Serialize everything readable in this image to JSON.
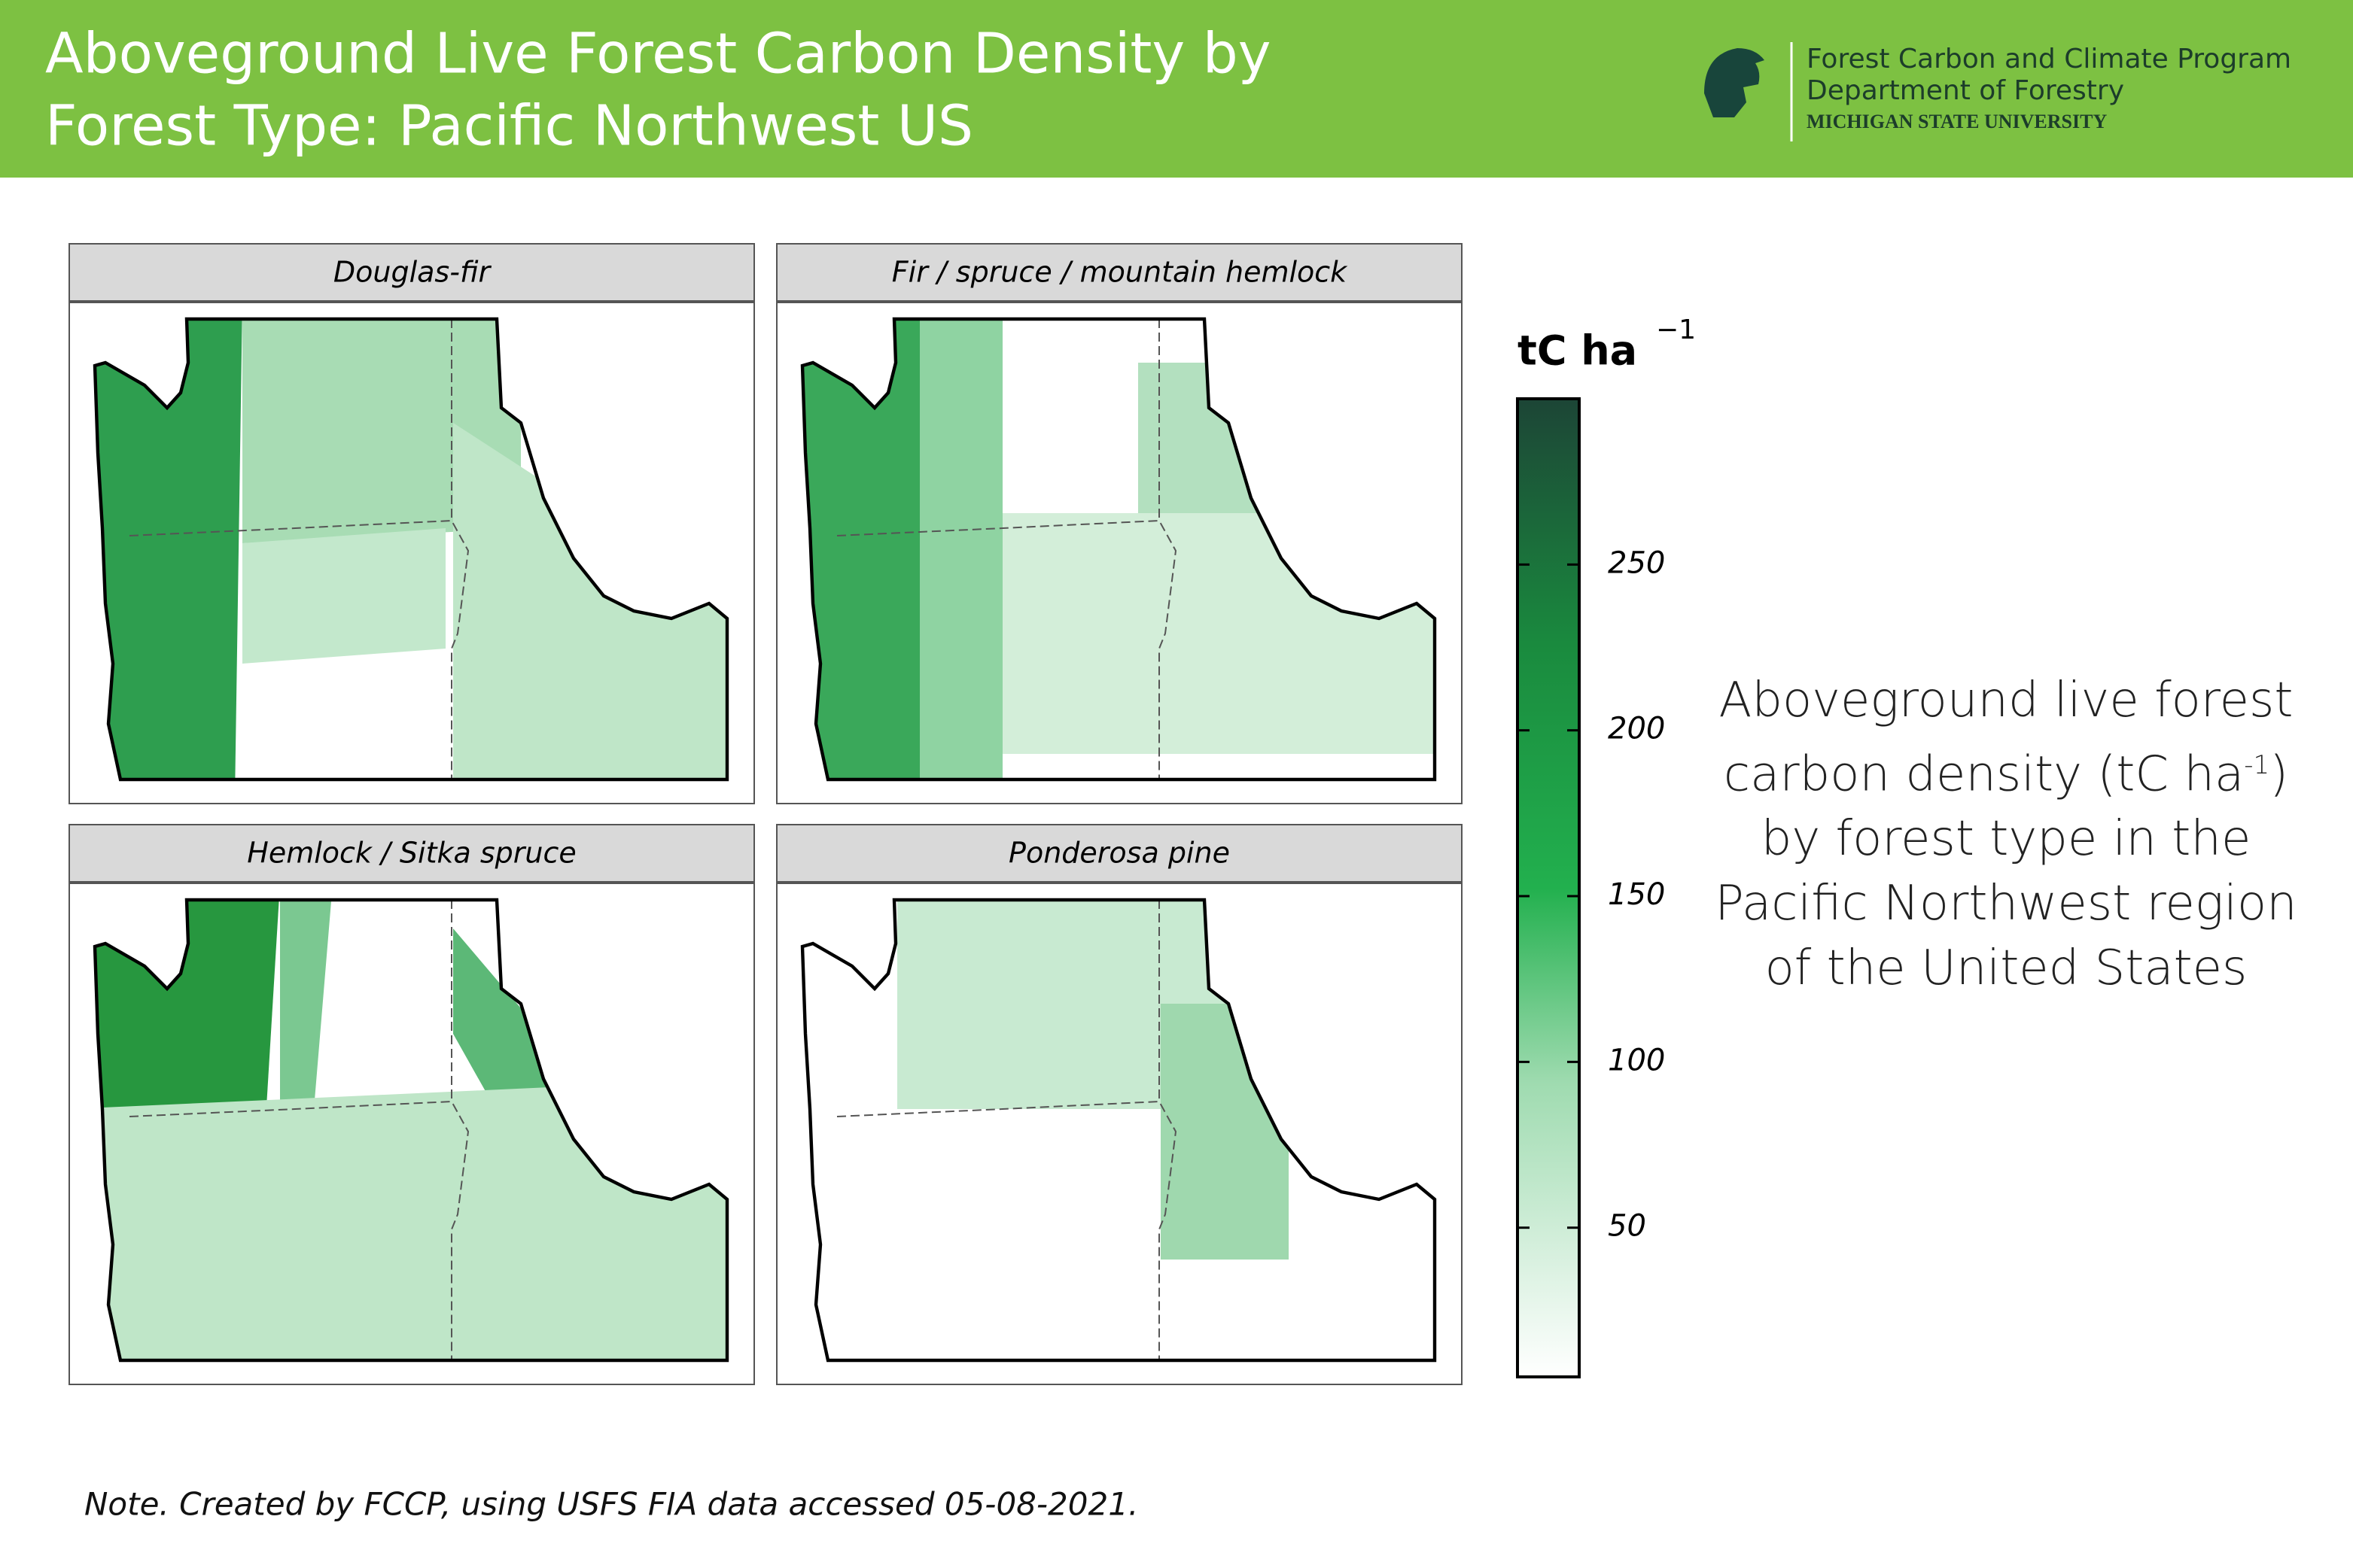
{
  "header": {
    "title_lines": [
      "Aboveground Live Forest Carbon Density by",
      "Forest Type: Pacific Northwest US"
    ],
    "logo_lines": [
      "Forest Carbon and Climate Program",
      "Department of Forestry",
      "MICHIGAN STATE UNIVERSITY"
    ]
  },
  "panels": [
    "Douglas-fir",
    "Fir / spruce / mountain hemlock",
    "Hemlock / Sitka spruce",
    "Ponderosa pine"
  ],
  "legend": {
    "title": "tC ha",
    "title_exp": "−1",
    "lim": [
      5,
      300
    ],
    "ticks": [
      50,
      100,
      150,
      200,
      250
    ]
  },
  "description": {
    "before": "Aboveground live forest carbon density (tC ha",
    "exp": "-1",
    "after": ") by forest type in the Pacific Northwest region of the United States"
  },
  "note": "Note. Created by FCCP, using USFS FIA data accessed 05-08-2021."
}
